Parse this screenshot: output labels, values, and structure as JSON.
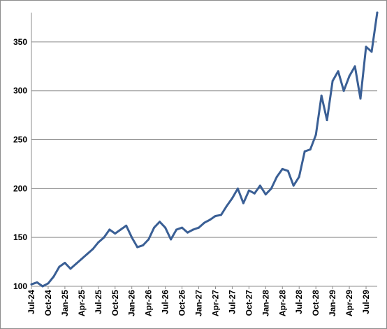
{
  "chart_data": {
    "type": "line",
    "title": "",
    "xlabel": "",
    "ylabel": "",
    "ylim": [
      100,
      380
    ],
    "y_ticks": [
      100,
      150,
      200,
      250,
      300,
      350
    ],
    "y_tick_labels": [
      "100",
      "150",
      "200",
      "250",
      "300",
      "350"
    ],
    "x_ticks": [
      "Jul-24",
      "Oct-24",
      "Jan-25",
      "Apr-25",
      "Jul-25",
      "Oct-25",
      "Jan-26",
      "Apr-26",
      "Jul-26",
      "Oct-26",
      "Jan-27",
      "Apr-27",
      "Jul-27",
      "Oct-27",
      "Jan-28",
      "Apr-28",
      "Jul-28",
      "Oct-28",
      "Jan-29",
      "Apr-29",
      "Jul-29"
    ],
    "grid": "horizontal",
    "legend": "none",
    "line_color": "#3a5f95",
    "series": [
      {
        "x": [
          "2024-07",
          "2024-08",
          "2024-09",
          "2024-10",
          "2024-11",
          "2024-12",
          "2025-01",
          "2025-02",
          "2025-03",
          "2025-04",
          "2025-05",
          "2025-06",
          "2025-07",
          "2025-08",
          "2025-09",
          "2025-10",
          "2025-11",
          "2025-12",
          "2026-01",
          "2026-02",
          "2026-03",
          "2026-04",
          "2026-05",
          "2026-06",
          "2026-07",
          "2026-08",
          "2026-09",
          "2026-10",
          "2026-11",
          "2026-12",
          "2027-01",
          "2027-02",
          "2027-03",
          "2027-04",
          "2027-05",
          "2027-06",
          "2027-07",
          "2027-08",
          "2027-09",
          "2027-10",
          "2027-11",
          "2027-12",
          "2028-01",
          "2028-02",
          "2028-03",
          "2028-04",
          "2028-05",
          "2028-06",
          "2028-07",
          "2028-08",
          "2028-09",
          "2028-10",
          "2028-11",
          "2028-12",
          "2029-01",
          "2029-02",
          "2029-03",
          "2029-04",
          "2029-05",
          "2029-06",
          "2029-07",
          "2029-08",
          "2029-09"
        ],
        "values": [
          102,
          104,
          100,
          103,
          110,
          120,
          124,
          118,
          123,
          128,
          133,
          138,
          145,
          150,
          158,
          154,
          158,
          162,
          150,
          140,
          142,
          148,
          160,
          166,
          160,
          148,
          158,
          160,
          155,
          158,
          160,
          165,
          168,
          172,
          173,
          182,
          190,
          200,
          185,
          198,
          195,
          203,
          194,
          200,
          212,
          220,
          218,
          203,
          212,
          238,
          240,
          255,
          295,
          270,
          310,
          320,
          300,
          315,
          325,
          292,
          345,
          340,
          380
        ]
      }
    ]
  }
}
